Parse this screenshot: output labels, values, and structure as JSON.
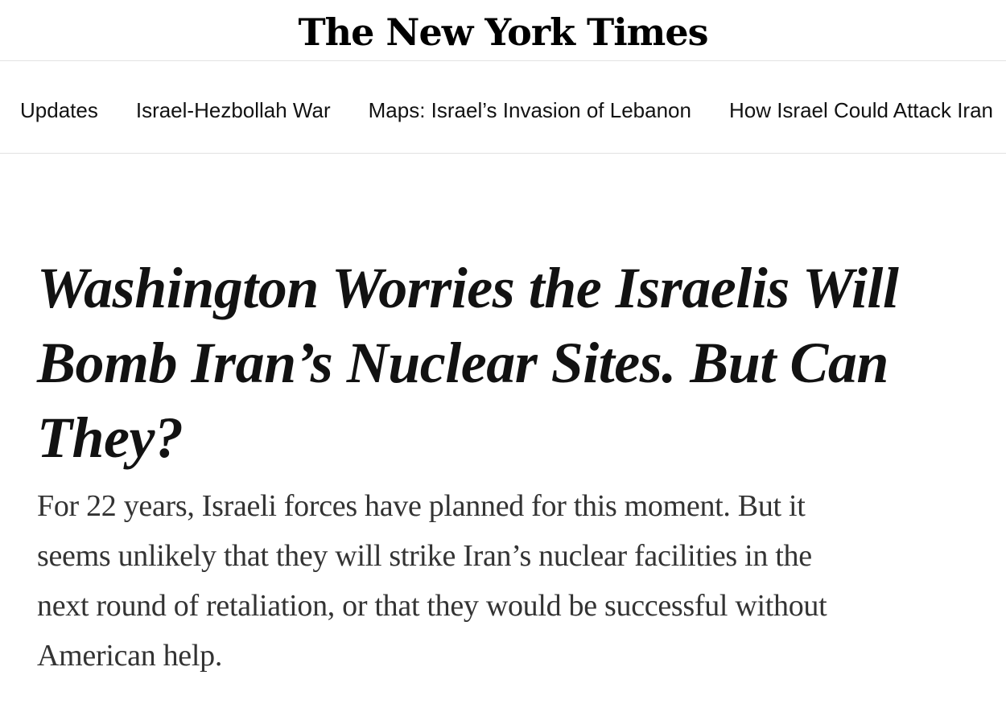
{
  "masthead": {
    "logo_text": "The New York Times"
  },
  "nav": {
    "items": [
      {
        "label": "Updates"
      },
      {
        "label": "Israel-Hezbollah War"
      },
      {
        "label": "Maps: Israel’s Invasion of Lebanon"
      },
      {
        "label": "How Israel Could Attack Iran"
      }
    ]
  },
  "article": {
    "headline": "Washington Worries the Israelis Will Bomb Iran’s Nuclear Sites. But Can They?",
    "headline_lines": [
      "Washington Worries the Israelis Will",
      "Bomb Iran’s Nuclear Sites. But Can",
      "They?"
    ],
    "summary": "For 22 years, Israeli forces have planned for this moment. But it seems unlikely that they will strike Iran’s nuclear facilities in the next round of retaliation, or that they would be successful without American help.",
    "summary_lines": [
      "For 22 years, Israeli forces have planned for this moment. But it",
      "seems unlikely that they will strike Iran’s nuclear facilities in the",
      "next round of retaliation, or that they would be successful without",
      "American help."
    ]
  },
  "colors": {
    "text_primary": "#121212",
    "text_secondary": "#333333",
    "divider": "#e2e2e2",
    "background": "#ffffff"
  }
}
